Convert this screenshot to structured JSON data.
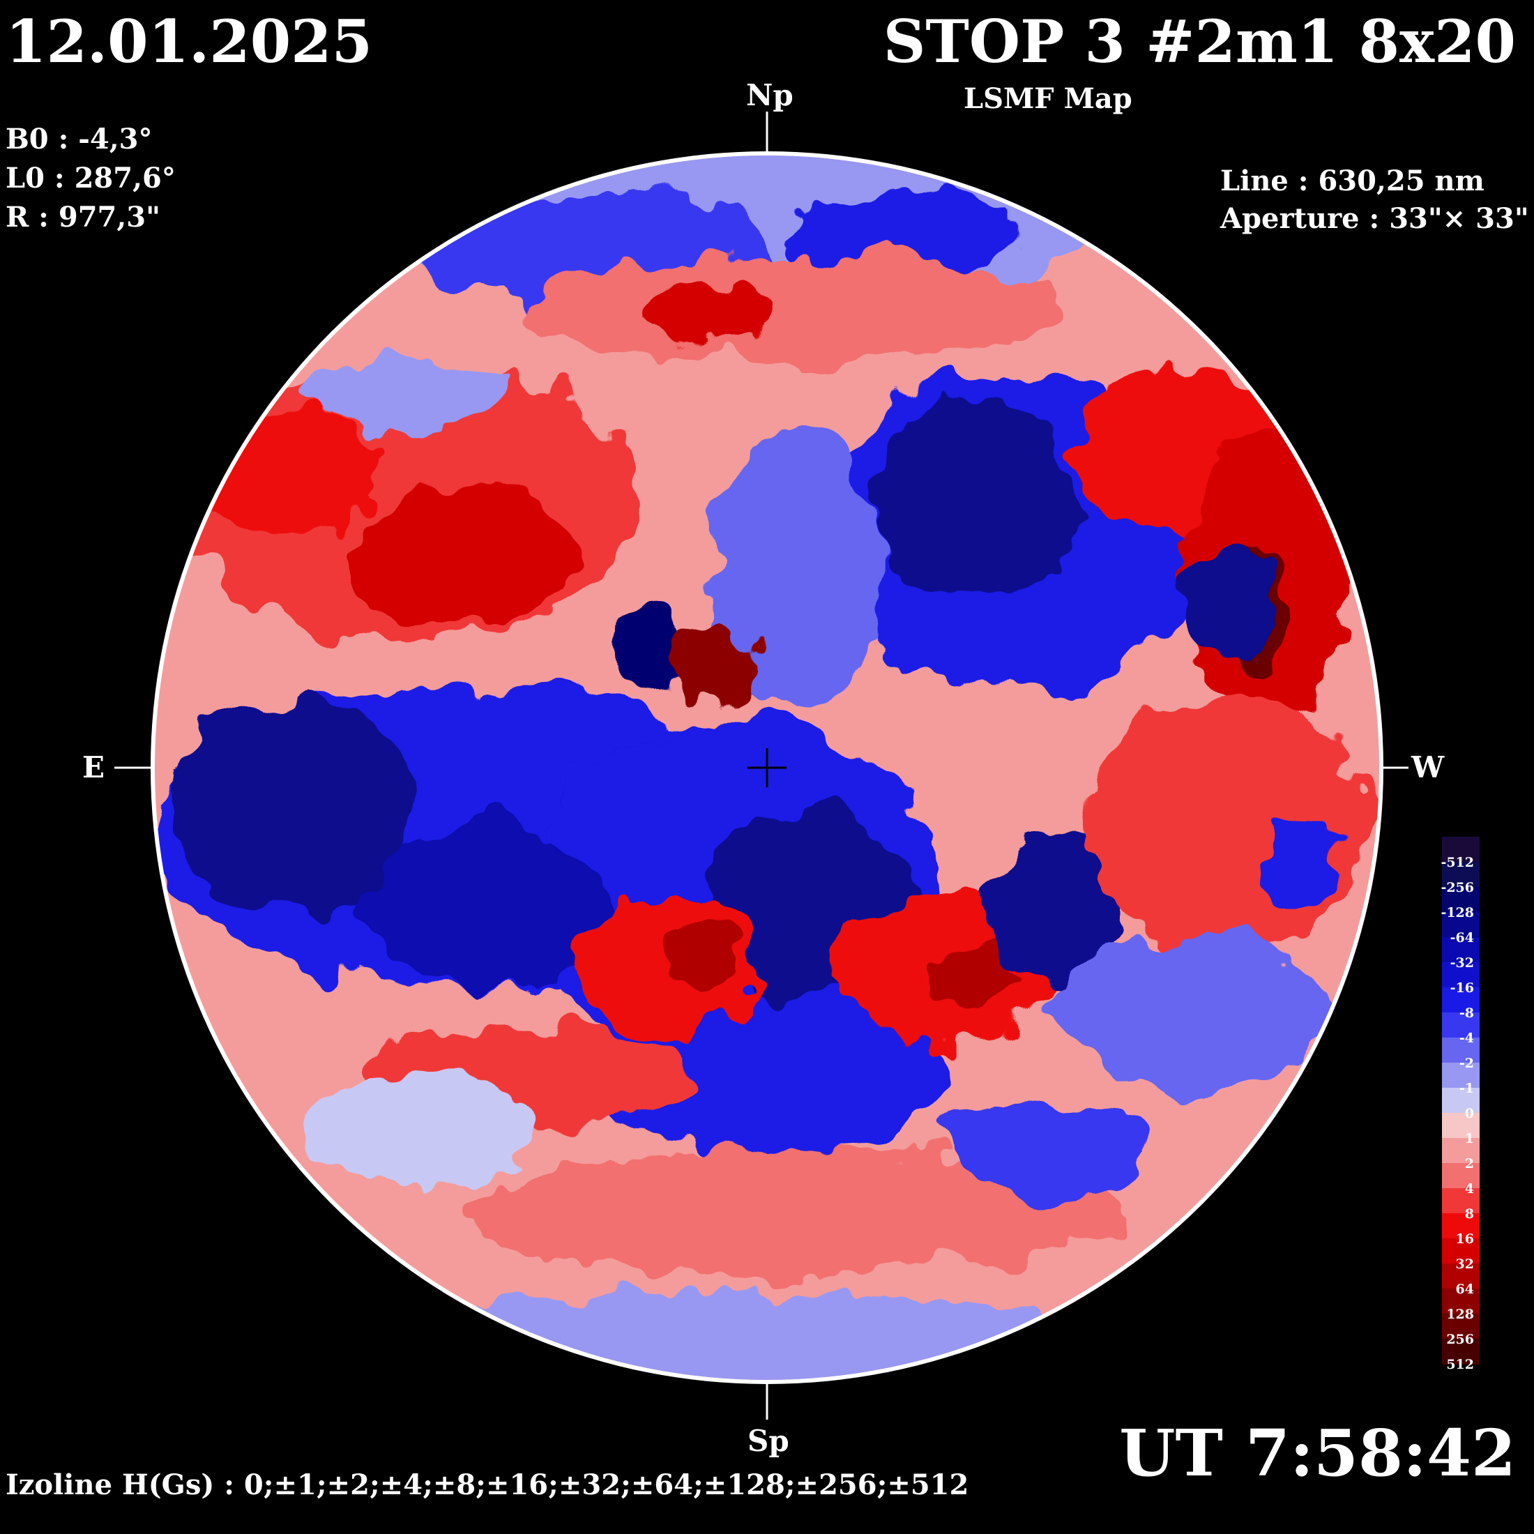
{
  "header": {
    "date": "12.01.2025",
    "title": "STOP 3 #2m1 8x20",
    "subtitle": "LSMF  Map"
  },
  "parameters": {
    "b0": "B0 : -4,3°",
    "l0": "L0 : 287,6°",
    "r": "R  : 977,3\""
  },
  "instrument": {
    "line": "Line :  630,25 nm",
    "aperture": "Aperture : 33\"× 33\""
  },
  "directions": {
    "north": "Np",
    "south": "Sp",
    "east": "E",
    "west": "W"
  },
  "time": "UT 7:58:42",
  "izoline": "Izoline H(Gs) : 0;±1;±2;±4;±8;±16;±32;±64;±128;±256;±512",
  "colorbar": {
    "labels": [
      "-512",
      "-256",
      "-128",
      "-64",
      "-32",
      "-16",
      "-8",
      "-4",
      "-2",
      "-1",
      "0",
      "1",
      "2",
      "4",
      "8",
      "16",
      "32",
      "64",
      "128",
      "256",
      "512"
    ],
    "colors": [
      "#1a0a3a",
      "#0d0d55",
      "#050570",
      "#08088e",
      "#0a0ab0",
      "#1010cc",
      "#1a1ae6",
      "#3838f0",
      "#6666f0",
      "#9898f2",
      "#c8c8f4",
      "#f7c6c6",
      "#f49c9c",
      "#f27070",
      "#f03838",
      "#ee0a0a",
      "#d40000",
      "#b00000",
      "#8c0000",
      "#6a0000",
      "#460000"
    ],
    "negative_color": "#1010cc",
    "positive_color": "#ee0a0a"
  }
}
